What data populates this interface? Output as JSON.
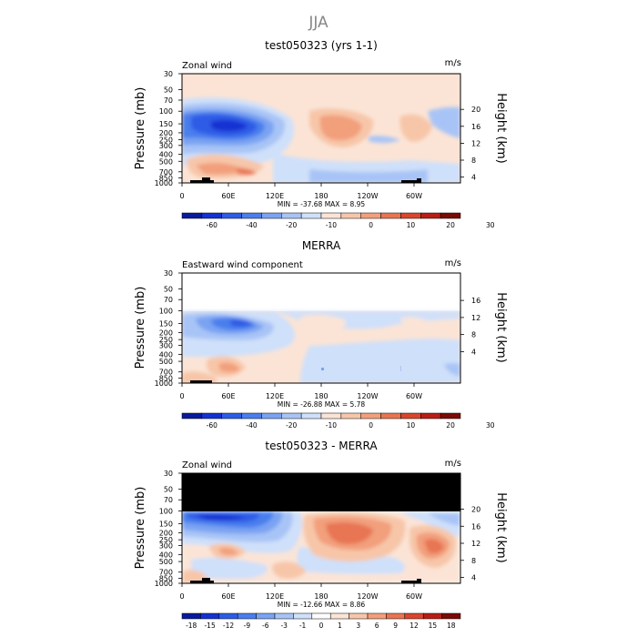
{
  "figure": {
    "season_title": "JJA"
  },
  "colorbar_colors_main": [
    "#0a1a9c",
    "#1432d2",
    "#2d5ce6",
    "#4a7eed",
    "#7aa3f2",
    "#a8c4f6",
    "#cfe0fa",
    "#fbe4d6",
    "#f7c6a9",
    "#f29f7b",
    "#e87452",
    "#d9462d",
    "#b81e14",
    "#7a0a05"
  ],
  "colorbar_colors_diff": [
    "#0a1a9c",
    "#1432d2",
    "#2d5ce6",
    "#4a7eed",
    "#7aa3f2",
    "#a8c4f6",
    "#cfe0fa",
    "#ffffff",
    "#fbe4d6",
    "#f7c6a9",
    "#f29f7b",
    "#e87452",
    "#d9462d",
    "#b81e14",
    "#7a0a05"
  ],
  "chart_data": [
    {
      "type": "heatmap",
      "title": "test050323 (yrs 1-1)",
      "subtitle_left": "Zonal wind",
      "subtitle_right": "m/s",
      "ylabel": "Pressure (mb)",
      "ylabel_right": "Height (km)",
      "x_ticks": [
        "0",
        "60E",
        "120E",
        "180",
        "120W",
        "60W"
      ],
      "y_ticks": [
        "30",
        "50",
        "70",
        "100",
        "150",
        "200",
        "250",
        "300",
        "400",
        "500",
        "700",
        "850",
        "1000"
      ],
      "y_ticks_right": [
        "20",
        "16",
        "12",
        "8",
        "4"
      ],
      "stats": "MIN = -37.68   MAX =    8.95",
      "colorbar_labels": [
        "-60",
        "-40",
        "-20",
        "-10",
        "0",
        "10",
        "20",
        "30"
      ],
      "min": -37.68,
      "max": 8.95
    },
    {
      "type": "heatmap",
      "title": "MERRA",
      "subtitle_left": "Eastward wind component",
      "subtitle_right": "m/s",
      "ylabel": "Pressure (mb)",
      "ylabel_right": "Height (km)",
      "x_ticks": [
        "0",
        "60E",
        "120E",
        "180",
        "120W",
        "60W"
      ],
      "y_ticks": [
        "30",
        "50",
        "70",
        "100",
        "150",
        "200",
        "250",
        "300",
        "400",
        "500",
        "700",
        "850",
        "1000"
      ],
      "y_ticks_right": [
        "16",
        "12",
        "8",
        "4"
      ],
      "stats": "MIN = -26.88   MAX =    5.78",
      "colorbar_labels": [
        "-60",
        "-40",
        "-20",
        "-10",
        "0",
        "10",
        "20",
        "30"
      ],
      "min": -26.88,
      "max": 5.78
    },
    {
      "type": "heatmap",
      "title": "test050323 - MERRA",
      "subtitle_left": "Zonal wind",
      "subtitle_right": "m/s",
      "ylabel": "Pressure (mb)",
      "ylabel_right": "Height (km)",
      "x_ticks": [
        "0",
        "60E",
        "120E",
        "180",
        "120W",
        "60W"
      ],
      "y_ticks": [
        "30",
        "50",
        "70",
        "100",
        "150",
        "200",
        "250",
        "300",
        "400",
        "500",
        "700",
        "850",
        "1000"
      ],
      "y_ticks_right": [
        "20",
        "16",
        "12",
        "8",
        "4"
      ],
      "stats": "MIN = -12.66   MAX =    8.86",
      "colorbar_labels": [
        "-18",
        "-15",
        "-12",
        "-9",
        "-6",
        "-3",
        "-1",
        "0",
        "1",
        "3",
        "6",
        "9",
        "12",
        "15",
        "18"
      ],
      "min": -12.66,
      "max": 8.86
    }
  ]
}
